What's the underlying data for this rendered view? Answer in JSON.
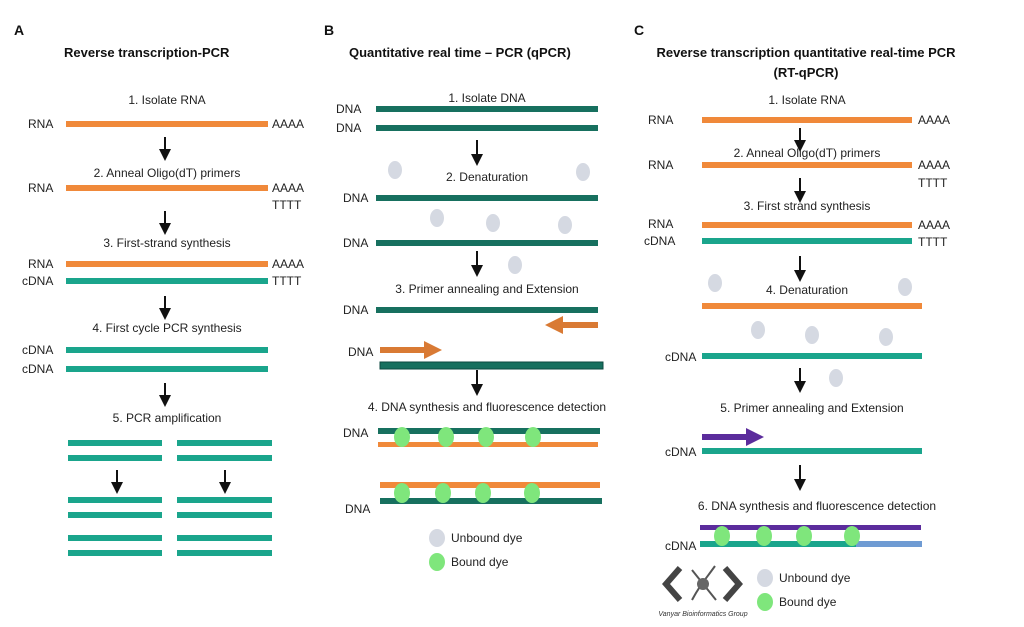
{
  "colors": {
    "rna": "#f0893a",
    "cdna": "#1aa58c",
    "dna": "#17705f",
    "primer": "#5b2c9c",
    "unbound_dye": "#d5d9e2",
    "bound_dye": "#7fe67c"
  },
  "panel_a": {
    "letter": "A",
    "title": "Reverse transcription-PCR",
    "steps": [
      "1. Isolate RNA",
      "2. Anneal Oligo(dT) primers",
      "3. First-strand synthesis",
      "4. First cycle PCR synthesis",
      "5. PCR amplification"
    ],
    "labels": {
      "rna": "RNA",
      "cdna": "cDNA",
      "polya": "AAAA",
      "polyt": "TTTT"
    }
  },
  "panel_b": {
    "letter": "B",
    "title": "Quantitative real time – PCR (qPCR)",
    "steps": [
      "1. Isolate DNA",
      "2. Denaturation",
      "3. Primer annealing and Extension",
      "4. DNA synthesis and fluorescence detection"
    ],
    "labels": {
      "dna": "DNA"
    },
    "legend": {
      "unbound": "Unbound dye",
      "bound": "Bound dye"
    }
  },
  "panel_c": {
    "letter": "C",
    "title_line1": "Reverse transcription quantitative real-time PCR",
    "title_line2": "(RT-qPCR)",
    "steps": [
      "1. Isolate RNA",
      "2. Anneal Oligo(dT) primers",
      "3. First strand synthesis",
      "4. Denaturation",
      "5. Primer annealing and Extension",
      "6. DNA synthesis and fluorescence detection"
    ],
    "labels": {
      "rna": "RNA",
      "cdna": "cDNA",
      "polya": "AAAA",
      "polyt": "TTTT"
    },
    "legend": {
      "unbound": "Unbound dye",
      "bound": "Bound dye"
    }
  },
  "logo": {
    "text": "Vanyar Bioinformatics Group"
  }
}
